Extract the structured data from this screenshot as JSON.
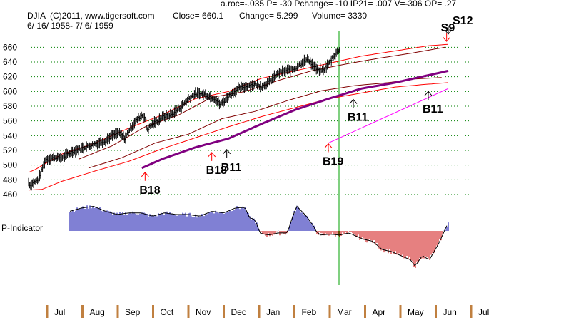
{
  "chart_data": {
    "type": "line",
    "ticker": "DJIA",
    "copyright": "(C)2011, www.tigersoft.com",
    "close_text": "Close=  660.1",
    "change_text": "Change= 5.299",
    "volume_text": "Volume= 3330",
    "date_range": "6/ 16/ 1958- 7/ 6/ 1959",
    "indicator_line": "a.roc=-.035  P= -30  Pchange= -10  IP21= .007  V=-306  OP= .27",
    "y_ticks": [
      660,
      640,
      620,
      600,
      580,
      560,
      540,
      520,
      500,
      480,
      460
    ],
    "ylim": [
      460,
      670
    ],
    "months": [
      "Jul",
      "Aug",
      "Sep",
      "Oct",
      "Nov",
      "Dec",
      "Jan",
      "Feb",
      "Mar",
      "Apr",
      "May",
      "Jun",
      "Jul"
    ],
    "lower_label": "P-Indicator",
    "price_anchors": [
      [
        0,
        477
      ],
      [
        0.05,
        472
      ],
      [
        0.1,
        475
      ],
      [
        0.3,
        480
      ],
      [
        0.5,
        507
      ],
      [
        0.8,
        511
      ],
      [
        1,
        510
      ],
      [
        1.3,
        518
      ],
      [
        1.6,
        523
      ],
      [
        2,
        529
      ],
      [
        2.3,
        533
      ],
      [
        2.5,
        540
      ],
      [
        2.7,
        544
      ],
      [
        2.9,
        536
      ],
      [
        3,
        546
      ],
      [
        3.2,
        559
      ],
      [
        3.4,
        568
      ],
      [
        3.5,
        564
      ],
      [
        3.55,
        548
      ],
      [
        3.7,
        555
      ],
      [
        3.9,
        561
      ],
      [
        4,
        565
      ],
      [
        4.3,
        569
      ],
      [
        4.6,
        580
      ],
      [
        4.8,
        590
      ],
      [
        5,
        597
      ],
      [
        5.3,
        596
      ],
      [
        5.6,
        590
      ],
      [
        5.75,
        582
      ],
      [
        5.9,
        588
      ],
      [
        6,
        594
      ],
      [
        6.3,
        604
      ],
      [
        6.6,
        608
      ],
      [
        6.8,
        610
      ],
      [
        7,
        607
      ],
      [
        7.2,
        612
      ],
      [
        7.5,
        625
      ],
      [
        7.8,
        629
      ],
      [
        8,
        631
      ],
      [
        8.2,
        639
      ],
      [
        8.4,
        644
      ],
      [
        8.5,
        637
      ],
      [
        8.7,
        628
      ],
      [
        8.85,
        629
      ],
      [
        9,
        637
      ],
      [
        9.15,
        648
      ],
      [
        9.3,
        655
      ],
      [
        9.35,
        660
      ]
    ],
    "ma_anchors": [
      [
        3.4,
        496
      ],
      [
        4,
        508
      ],
      [
        5,
        524
      ],
      [
        6,
        536
      ],
      [
        7,
        556
      ],
      [
        8,
        575
      ],
      [
        9,
        590
      ],
      [
        10,
        604
      ],
      [
        11,
        612
      ],
      [
        12,
        622
      ],
      [
        12.6,
        628
      ]
    ],
    "band_upper_anchors": [
      [
        0,
        490
      ],
      [
        0.2,
        494
      ],
      [
        1,
        515
      ],
      [
        2,
        530
      ],
      [
        3,
        550
      ],
      [
        4,
        568
      ],
      [
        5,
        590
      ],
      [
        6,
        600
      ],
      [
        7,
        618
      ],
      [
        8,
        628
      ],
      [
        9,
        638
      ],
      [
        10,
        648
      ],
      [
        11,
        655
      ],
      [
        12,
        662
      ],
      [
        12.6,
        664
      ]
    ],
    "band_lower_anchors": [
      [
        0,
        466
      ],
      [
        0.4,
        467
      ],
      [
        1,
        478
      ],
      [
        2,
        492
      ],
      [
        3,
        505
      ],
      [
        4,
        522
      ],
      [
        5,
        537
      ],
      [
        6,
        552
      ],
      [
        7,
        566
      ],
      [
        8,
        578
      ],
      [
        9,
        590
      ],
      [
        10,
        598
      ],
      [
        11,
        606
      ],
      [
        12,
        610
      ],
      [
        12.6,
        612
      ]
    ],
    "env_upper_anchors": [
      [
        1.5,
        508
      ],
      [
        2.5,
        526
      ],
      [
        3.5,
        552
      ],
      [
        4.5,
        568
      ],
      [
        5.5,
        592
      ],
      [
        6.5,
        600
      ],
      [
        7.5,
        615
      ],
      [
        8.5,
        628
      ],
      [
        9.5,
        637
      ],
      [
        10.5,
        645
      ],
      [
        11.5,
        652
      ],
      [
        12.5,
        660
      ]
    ],
    "env_lower_anchors": [
      [
        1.8,
        496
      ],
      [
        2.8,
        510
      ],
      [
        3.8,
        530
      ],
      [
        4.8,
        542
      ],
      [
        5.8,
        563
      ],
      [
        6.8,
        573
      ],
      [
        7.8,
        588
      ],
      [
        8.8,
        601
      ],
      [
        9.8,
        608
      ],
      [
        10.8,
        612
      ],
      [
        11.6,
        617
      ],
      [
        12.4,
        619
      ]
    ],
    "b19_line": [
      [
        9,
        530
      ],
      [
        12.6,
        604
      ]
    ],
    "p_indicator": [
      [
        0,
        0.6
      ],
      [
        0.5,
        0.7
      ],
      [
        1,
        0.75
      ],
      [
        1.5,
        0.6
      ],
      [
        2,
        0.5
      ],
      [
        2.5,
        0.55
      ],
      [
        3,
        0.55
      ],
      [
        3.5,
        0.45
      ],
      [
        4,
        0.55
      ],
      [
        4.5,
        0.5
      ],
      [
        5,
        0.5
      ],
      [
        5.5,
        0.45
      ],
      [
        6,
        0.6
      ],
      [
        6.5,
        0.55
      ],
      [
        7,
        0.7
      ],
      [
        7.4,
        0.72
      ],
      [
        7.6,
        0.4
      ],
      [
        7.8,
        0.35
      ],
      [
        7.95,
        0.15
      ],
      [
        8,
        -0.05
      ],
      [
        8.4,
        -0.1
      ],
      [
        8.8,
        -0.05
      ],
      [
        9.2,
        -0.05
      ],
      [
        9.45,
        0.5
      ],
      [
        9.6,
        0.75
      ],
      [
        10,
        0.45
      ],
      [
        10.3,
        0.15
      ],
      [
        10.4,
        0
      ],
      [
        10.6,
        -0.1
      ],
      [
        11,
        -0.08
      ],
      [
        11.4,
        -0.1
      ],
      [
        11.8,
        -0.05
      ],
      [
        12,
        -0.1
      ],
      [
        12.4,
        -0.2
      ],
      [
        12.8,
        -0.25
      ],
      [
        13.2,
        -0.45
      ],
      [
        13.6,
        -0.5
      ],
      [
        14,
        -0.6
      ],
      [
        14.4,
        -0.7
      ],
      [
        14.6,
        -0.85
      ],
      [
        14.9,
        -0.6
      ],
      [
        15.2,
        -0.7
      ],
      [
        15.4,
        -0.5
      ],
      [
        15.6,
        -0.3
      ],
      [
        15.8,
        -0.05
      ],
      [
        15.9,
        0.1
      ],
      [
        16,
        0.25
      ]
    ],
    "signals": [
      {
        "label": "B18",
        "t": 3.5,
        "y": 496,
        "dir": "up",
        "color": "#ff0000"
      },
      {
        "label": "B18",
        "t": 5.5,
        "y": 523,
        "dir": "up",
        "color": "#ff0000"
      },
      {
        "label": "B11",
        "t": 5.95,
        "y": 527,
        "dir": "up",
        "color": "#000000"
      },
      {
        "label": "B19",
        "t": 9.0,
        "y": 535,
        "dir": "up",
        "color": "#ff0000"
      },
      {
        "label": "B11",
        "t": 9.75,
        "y": 595,
        "dir": "up",
        "color": "#000000"
      },
      {
        "label": "B11",
        "t": 12.0,
        "y": 606,
        "dir": "up",
        "color": "#000000"
      },
      {
        "label": "S9",
        "t": 12.55,
        "y": 666,
        "dir": "down",
        "color": "#ff0000"
      },
      {
        "label": "S12",
        "t": 12.6,
        "y": 676,
        "dir": "down",
        "color": "#000000"
      }
    ],
    "colors": {
      "price": "#000000",
      "ma": "#800080",
      "band": "#ff0000",
      "envelope": "#800000",
      "b19": "#ff00ff",
      "grid": "#008000",
      "marker": "#00a000",
      "pos_bar": "#0000aa",
      "neg_bar": "#cc0000",
      "axis_bar": "#c08040"
    }
  }
}
